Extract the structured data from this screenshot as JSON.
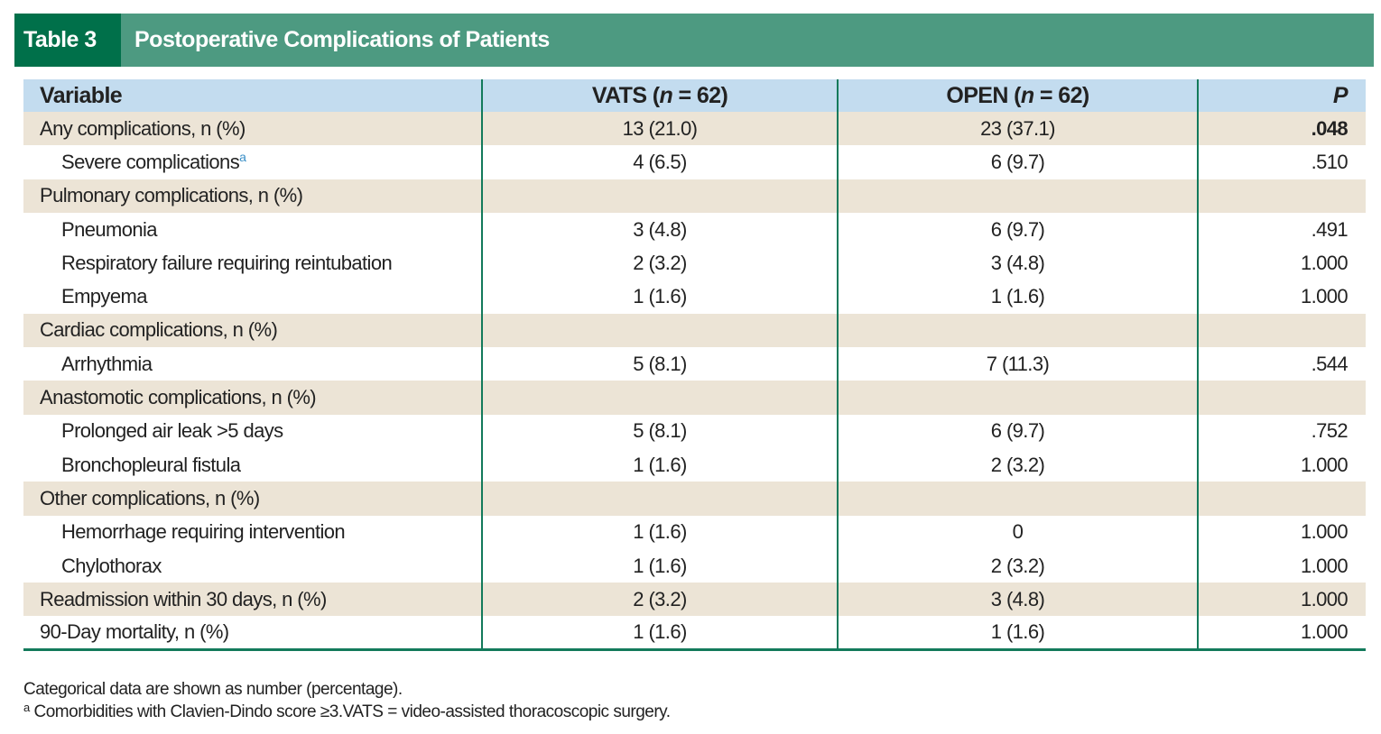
{
  "header": {
    "table_label": "Table 3",
    "title": "Postoperative Complications of Patients"
  },
  "columns": {
    "variable": "Variable",
    "vats_prefix": "VATS (",
    "vats_n": "n",
    "vats_suffix": " = 62)",
    "open_prefix": "OPEN (",
    "open_n": "n",
    "open_suffix": " = 62)",
    "p": "P"
  },
  "rows": [
    {
      "label": "Any complications, n (%)",
      "vats": "13 (21.0)",
      "open": "23 (37.1)",
      "p": ".048"
    },
    {
      "label": "Severe complications",
      "sup": "a",
      "vats": "4 (6.5)",
      "open": "6 (9.7)",
      "p": ".510"
    },
    {
      "label": "Pulmonary complications, n (%)",
      "vats": "",
      "open": "",
      "p": ""
    },
    {
      "label": "Pneumonia",
      "vats": "3 (4.8)",
      "open": "6 (9.7)",
      "p": ".491"
    },
    {
      "label": "Respiratory failure requiring reintubation",
      "vats": "2 (3.2)",
      "open": "3 (4.8)",
      "p": "1.000"
    },
    {
      "label": "Empyema",
      "vats": "1 (1.6)",
      "open": "1 (1.6)",
      "p": "1.000"
    },
    {
      "label": "Cardiac complications, n (%)",
      "vats": "",
      "open": "",
      "p": ""
    },
    {
      "label": "Arrhythmia",
      "vats": "5 (8.1)",
      "open": "7 (11.3)",
      "p": ".544"
    },
    {
      "label": "Anastomotic complications, n (%)",
      "vats": "",
      "open": "",
      "p": ""
    },
    {
      "label": "Prolonged air leak >5 days",
      "vats": "5 (8.1)",
      "open": "6 (9.7)",
      "p": ".752"
    },
    {
      "label": "Bronchopleural fistula",
      "vats": "1 (1.6)",
      "open": "2 (3.2)",
      "p": "1.000"
    },
    {
      "label": "Other complications, n (%)",
      "vats": "",
      "open": "",
      "p": ""
    },
    {
      "label": "Hemorrhage requiring intervention",
      "vats": "1 (1.6)",
      "open": "0",
      "p": "1.000"
    },
    {
      "label": "Chylothorax",
      "vats": "1 (1.6)",
      "open": "2 (3.2)",
      "p": "1.000"
    },
    {
      "label": "Readmission within 30 days, n (%)",
      "vats": "2 (3.2)",
      "open": "3 (4.8)",
      "p": "1.000"
    },
    {
      "label": "90-Day mortality, n (%)",
      "vats": "1 (1.6)",
      "open": "1 (1.6)",
      "p": "1.000"
    }
  ],
  "footnotes": {
    "line1": "Categorical data are shown as number (percentage).",
    "line2_sup": "a",
    "line2": " Comorbidities with Clavien-Dindo score ≥3.VATS = video-assisted thoracoscopic surgery."
  }
}
